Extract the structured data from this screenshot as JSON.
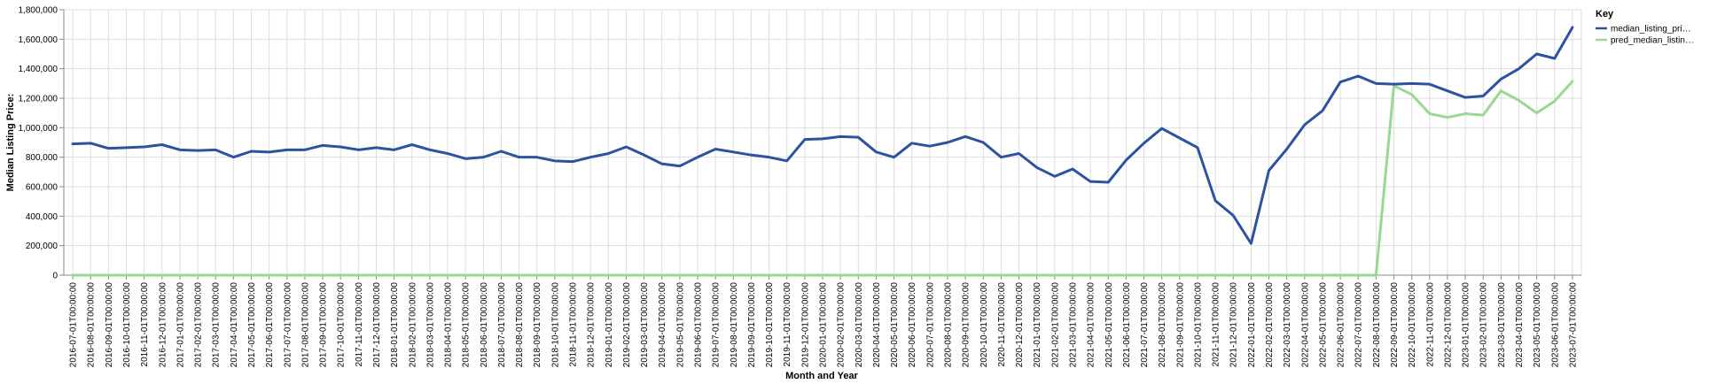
{
  "chart_data": {
    "type": "line",
    "xlabel": "Month and Year",
    "ylabel": "Median Listing Price:",
    "ylim": [
      0,
      1800000
    ],
    "yticks": [
      "0",
      "200,000",
      "400,000",
      "600,000",
      "800,000",
      "1,000,000",
      "1,200,000",
      "1,400,000",
      "1,600,000",
      "1,800,000"
    ],
    "grid": true,
    "legend_position": "top-right",
    "legend_title": "Key",
    "x": [
      "2016-07-01T00:00:00",
      "2016-08-01T00:00:00",
      "2016-09-01T00:00:00",
      "2016-10-01T00:00:00",
      "2016-11-01T00:00:00",
      "2016-12-01T00:00:00",
      "2017-01-01T00:00:00",
      "2017-02-01T00:00:00",
      "2017-03-01T00:00:00",
      "2017-04-01T00:00:00",
      "2017-05-01T00:00:00",
      "2017-06-01T00:00:00",
      "2017-07-01T00:00:00",
      "2017-08-01T00:00:00",
      "2017-09-01T00:00:00",
      "2017-10-01T00:00:00",
      "2017-11-01T00:00:00",
      "2017-12-01T00:00:00",
      "2018-01-01T00:00:00",
      "2018-02-01T00:00:00",
      "2018-03-01T00:00:00",
      "2018-04-01T00:00:00",
      "2018-05-01T00:00:00",
      "2018-06-01T00:00:00",
      "2018-07-01T00:00:00",
      "2018-08-01T00:00:00",
      "2018-09-01T00:00:00",
      "2018-10-01T00:00:00",
      "2018-11-01T00:00:00",
      "2018-12-01T00:00:00",
      "2019-01-01T00:00:00",
      "2019-02-01T00:00:00",
      "2019-03-01T00:00:00",
      "2019-04-01T00:00:00",
      "2019-05-01T00:00:00",
      "2019-06-01T00:00:00",
      "2019-07-01T00:00:00",
      "2019-08-01T00:00:00",
      "2019-09-01T00:00:00",
      "2019-10-01T00:00:00",
      "2019-11-01T00:00:00",
      "2019-12-01T00:00:00",
      "2020-01-01T00:00:00",
      "2020-02-01T00:00:00",
      "2020-03-01T00:00:00",
      "2020-04-01T00:00:00",
      "2020-05-01T00:00:00",
      "2020-06-01T00:00:00",
      "2020-07-01T00:00:00",
      "2020-08-01T00:00:00",
      "2020-09-01T00:00:00",
      "2020-10-01T00:00:00",
      "2020-11-01T00:00:00",
      "2020-12-01T00:00:00",
      "2021-01-01T00:00:00",
      "2021-02-01T00:00:00",
      "2021-03-01T00:00:00",
      "2021-04-01T00:00:00",
      "2021-05-01T00:00:00",
      "2021-06-01T00:00:00",
      "2021-07-01T00:00:00",
      "2021-08-01T00:00:00",
      "2021-09-01T00:00:00",
      "2021-10-01T00:00:00",
      "2021-11-01T00:00:00",
      "2021-12-01T00:00:00",
      "2022-01-01T00:00:00",
      "2022-02-01T00:00:00",
      "2022-03-01T00:00:00",
      "2022-04-01T00:00:00",
      "2022-05-01T00:00:00",
      "2022-06-01T00:00:00",
      "2022-07-01T00:00:00",
      "2022-08-01T00:00:00",
      "2022-09-01T00:00:00",
      "2022-10-01T00:00:00",
      "2022-11-01T00:00:00",
      "2022-12-01T00:00:00",
      "2023-01-01T00:00:00",
      "2023-02-01T00:00:00",
      "2023-03-01T00:00:00",
      "2023-04-01T00:00:00",
      "2023-05-01T00:00:00",
      "2023-06-01T00:00:00",
      "2023-07-01T00:00:00"
    ],
    "series": [
      {
        "name": "median_listing_pri…",
        "color": "#2c53a0",
        "values": [
          890000,
          895000,
          860000,
          865000,
          870000,
          885000,
          850000,
          845000,
          850000,
          800000,
          840000,
          835000,
          850000,
          850000,
          880000,
          870000,
          850000,
          865000,
          850000,
          885000,
          850000,
          825000,
          790000,
          800000,
          840000,
          800000,
          800000,
          775000,
          770000,
          800000,
          825000,
          870000,
          815000,
          755000,
          740000,
          800000,
          855000,
          835000,
          815000,
          800000,
          775000,
          920000,
          925000,
          940000,
          935000,
          835000,
          800000,
          895000,
          875000,
          900000,
          940000,
          900000,
          800000,
          825000,
          730000,
          670000,
          720000,
          635000,
          630000,
          780000,
          895000,
          995000,
          930000,
          865000,
          505000,
          405000,
          215000,
          710000,
          855000,
          1020000,
          1115000,
          1310000,
          1350000,
          1300000,
          1295000,
          1300000,
          1295000,
          1250000,
          1205000,
          1215000,
          1330000,
          1400000,
          1500000,
          1470000,
          1680000
        ]
      },
      {
        "name": "pred_median_listin…",
        "color": "#98d893",
        "values": [
          0,
          0,
          0,
          0,
          0,
          0,
          0,
          0,
          0,
          0,
          0,
          0,
          0,
          0,
          0,
          0,
          0,
          0,
          0,
          0,
          0,
          0,
          0,
          0,
          0,
          0,
          0,
          0,
          0,
          0,
          0,
          0,
          0,
          0,
          0,
          0,
          0,
          0,
          0,
          0,
          0,
          0,
          0,
          0,
          0,
          0,
          0,
          0,
          0,
          0,
          0,
          0,
          0,
          0,
          0,
          0,
          0,
          0,
          0,
          0,
          0,
          0,
          0,
          0,
          0,
          0,
          0,
          0,
          0,
          0,
          0,
          0,
          0,
          0,
          1285000,
          1225000,
          1095000,
          1070000,
          1095000,
          1085000,
          1250000,
          1185000,
          1100000,
          1180000,
          1315000
        ]
      }
    ]
  }
}
